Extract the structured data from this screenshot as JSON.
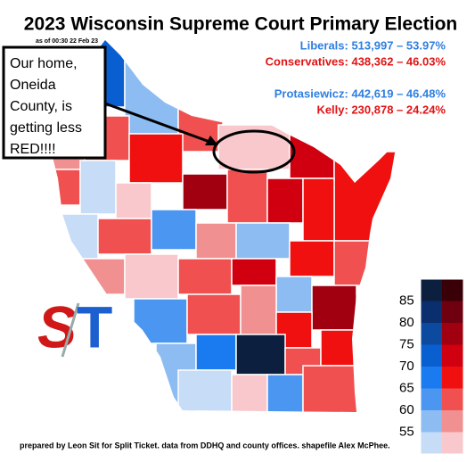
{
  "title": "2023 Wisconsin Supreme Court Primary Election",
  "timestamp": "as of 00:30 22 Feb 23",
  "results": [
    {
      "label": "Liberals: 513,997 – 53.97%",
      "color": "#2f7fe0"
    },
    {
      "label": "Conservatives: 438,362 – 46.03%",
      "color": "#e01414"
    },
    {
      "label": "Protasiewicz: 442,619 – 46.48%",
      "color": "#2f7fe0"
    },
    {
      "label": "Kelly: 230,878 – 24.24%",
      "color": "#e01414"
    }
  ],
  "annotation": [
    "Our home,",
    "Oneida",
    "County, is",
    "getting less",
    "RED!!!!"
  ],
  "logo": [
    "S",
    "T"
  ],
  "legend": {
    "levels": [
      85,
      80,
      75,
      70,
      65,
      60,
      55
    ],
    "blue": [
      "#0d1f3f",
      "#0a2e6e",
      "#0b4a9e",
      "#0a5fd0",
      "#1a7af0",
      "#4a96f0",
      "#8cbcf2",
      "#c6dcf7"
    ],
    "red": [
      "#3a0008",
      "#6e0010",
      "#a00010",
      "#d00010",
      "#f01010",
      "#f05050",
      "#f09090",
      "#f8c8cc"
    ]
  },
  "footer": "prepared by Leon Sit for Split Ticket. data from DDHQ and county offices. shapefile Alex McPhee."
}
